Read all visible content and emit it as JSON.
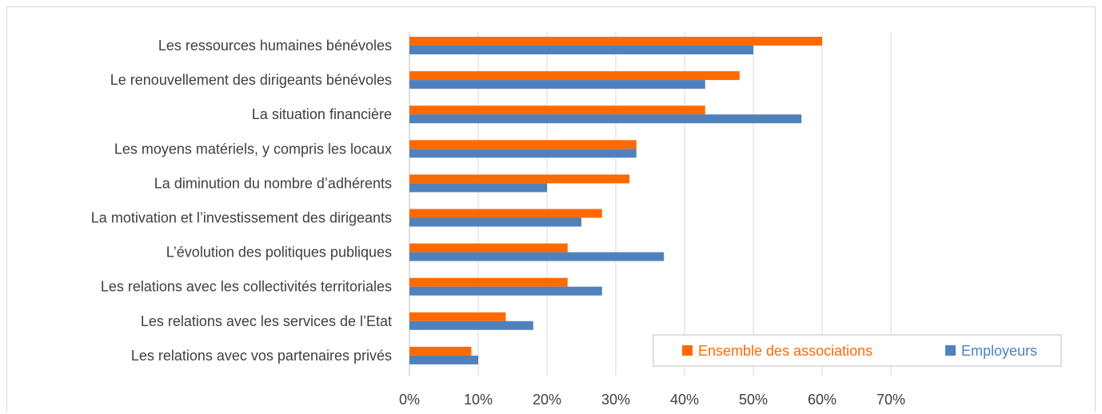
{
  "chart_data": {
    "type": "bar",
    "orientation": "horizontal",
    "categories": [
      "Les ressources humaines bénévoles",
      "Le renouvellement des dirigeants bénévoles",
      "La situation financière",
      "Les moyens matériels, y compris les locaux",
      "La diminution du nombre d’adhérents",
      "La motivation et l’investissement des dirigeants",
      "L’évolution des politiques publiques",
      "Les relations avec les collectivités territoriales",
      "Les relations avec les services de l’Etat",
      "Les relations avec vos partenaires privés"
    ],
    "series": [
      {
        "name": "Ensemble des associations",
        "color": "#ff6a00",
        "values": [
          60,
          48,
          43,
          33,
          32,
          28,
          23,
          23,
          14,
          9
        ]
      },
      {
        "name": "Employeurs",
        "color": "#4f81bd",
        "values": [
          50,
          43,
          57,
          33,
          20,
          25,
          37,
          28,
          18,
          10
        ]
      }
    ],
    "xlim": [
      0,
      70
    ],
    "xticks": [
      0,
      10,
      20,
      30,
      40,
      50,
      60,
      70
    ],
    "xtick_format": "percent",
    "grid": "vertical",
    "legend_position": "bottom-right-inside",
    "title": "",
    "xlabel": "",
    "ylabel": ""
  }
}
